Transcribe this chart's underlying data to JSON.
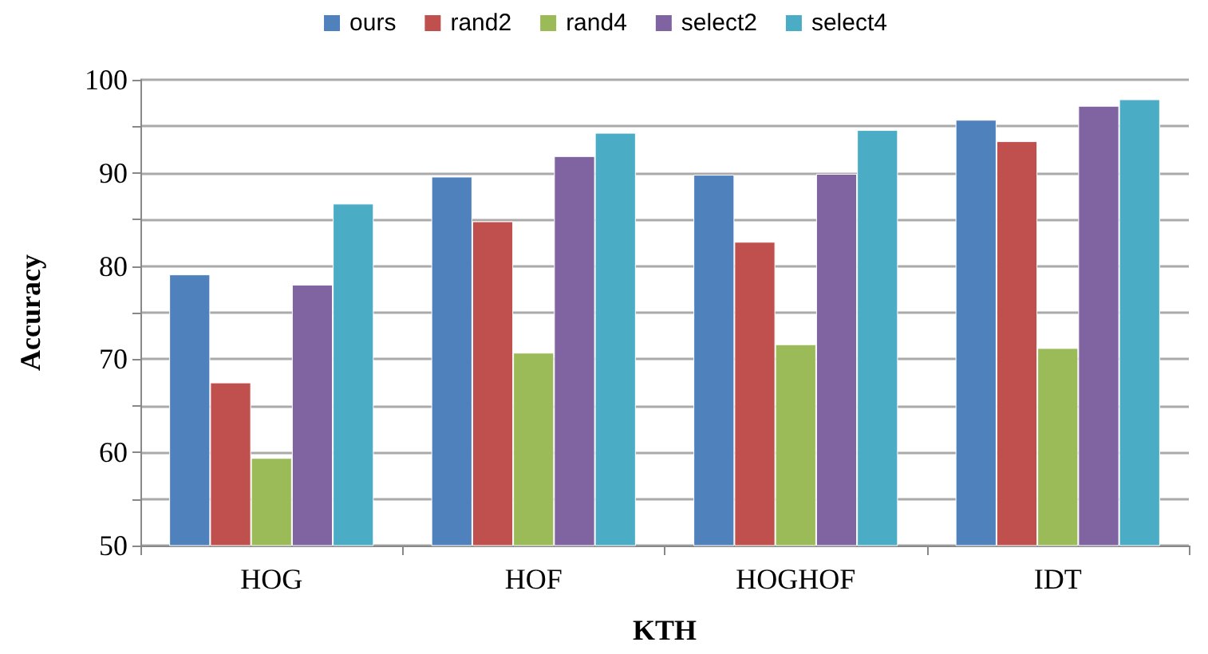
{
  "chart_data": {
    "type": "bar",
    "xlabel": "KTH",
    "ylabel": "Accuracy",
    "categories": [
      "HOG",
      "HOF",
      "HOGHOF",
      "IDT"
    ],
    "series": [
      {
        "name": "ours",
        "color": "#4f81bd",
        "values": [
          79.1,
          89.6,
          89.8,
          95.7
        ]
      },
      {
        "name": "rand2",
        "color": "#c0504d",
        "values": [
          67.5,
          84.8,
          82.6,
          93.4
        ]
      },
      {
        "name": "rand4",
        "color": "#9bbb59",
        "values": [
          59.4,
          70.7,
          71.6,
          71.2
        ]
      },
      {
        "name": "select2",
        "color": "#8064a2",
        "values": [
          78.0,
          91.8,
          89.9,
          97.2
        ]
      },
      {
        "name": "select4",
        "color": "#4bacc6",
        "values": [
          86.7,
          94.3,
          94.6,
          97.9
        ]
      }
    ],
    "ylim": [
      50,
      100
    ],
    "yticks": [
      50,
      {
        "value": 55,
        "label": null
      },
      60,
      {
        "value": 65,
        "label": null
      },
      70,
      {
        "value": 75,
        "label": null
      },
      80,
      {
        "value": 85,
        "label": null
      },
      90,
      {
        "value": 95,
        "label": null
      },
      100
    ],
    "grid": "y",
    "legend": "top"
  }
}
